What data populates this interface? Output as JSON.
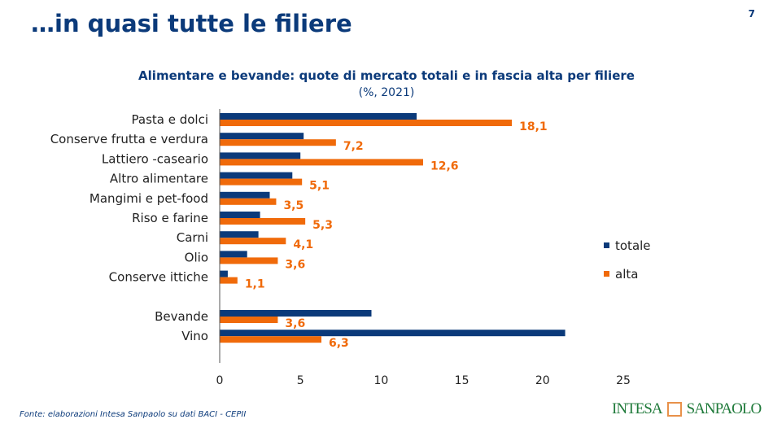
{
  "slide": {
    "title": "…in quasi tutte le filiere",
    "page_number": "7",
    "source": "Fonte: elaborazioni Intesa Sanpaolo su dati BACI - CEPII",
    "logo_text": [
      "INTESA",
      "SANPAOLO"
    ]
  },
  "chart_data": {
    "type": "bar",
    "orientation": "horizontal",
    "title": "Alimentare e bevande: quote di mercato totali e in fascia alta per filiere",
    "subtitle": "(%, 2021)",
    "categories": [
      "Pasta e dolci",
      "Conserve frutta e verdura",
      "Lattiero -caseario",
      "Altro alimentare",
      "Mangimi e pet-food",
      "Riso e farine",
      "Carni",
      "Olio",
      "Conserve ittiche",
      "",
      "Bevande",
      "Vino"
    ],
    "series": [
      {
        "name": "totale",
        "color": "#0b3a7a",
        "values": [
          12.2,
          5.2,
          5.0,
          4.5,
          3.1,
          2.5,
          2.4,
          1.7,
          0.5,
          null,
          9.4,
          21.4
        ],
        "labels": false
      },
      {
        "name": "alta",
        "color": "#f06a0a",
        "values": [
          18.1,
          7.2,
          12.6,
          5.1,
          3.5,
          5.3,
          4.1,
          3.6,
          1.1,
          null,
          3.6,
          6.3
        ],
        "labels": [
          "18,1",
          "7,2",
          "12,6",
          "5,1",
          "3,5",
          "5,3",
          "4,1",
          "3,6",
          "1,1",
          "",
          "3,6",
          "6,3"
        ]
      }
    ],
    "xlim": [
      0,
      25
    ],
    "xticks": [
      "0",
      "5",
      "10",
      "15",
      "20",
      "25"
    ],
    "grid": false,
    "legend_placement": "right"
  }
}
